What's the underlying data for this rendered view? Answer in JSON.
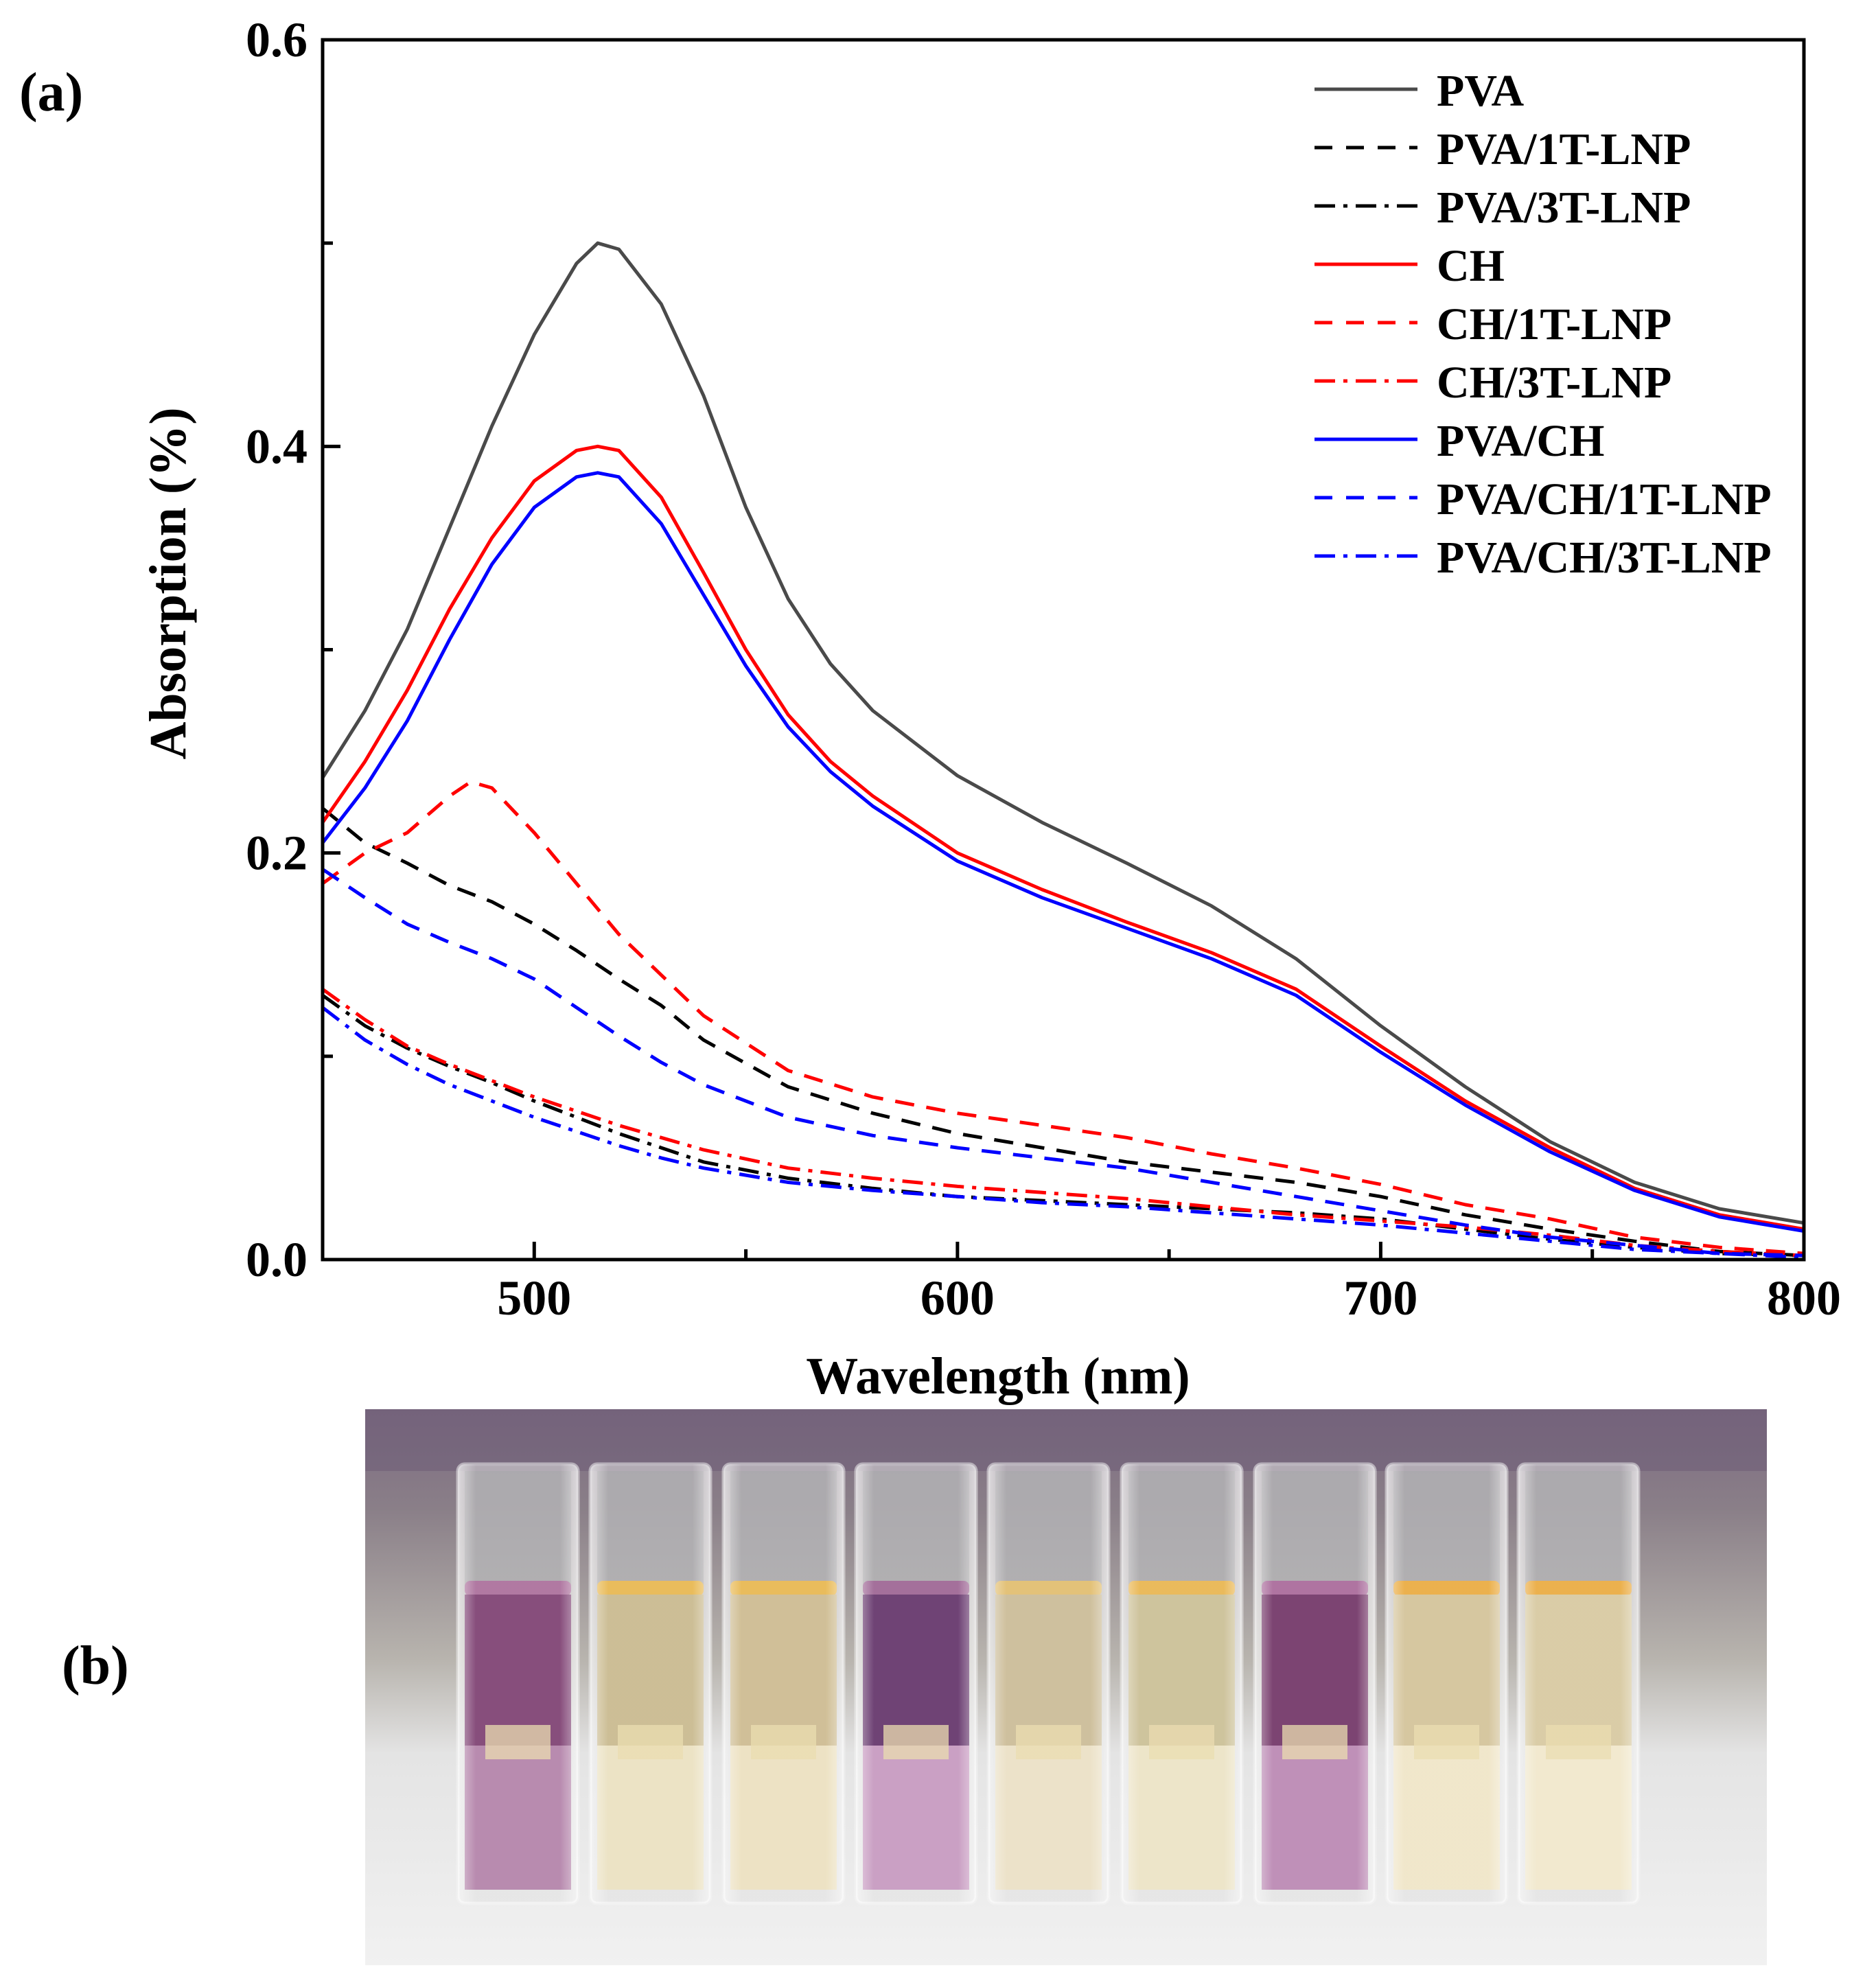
{
  "panels": {
    "a_label": "(a)",
    "b_label": "(b)"
  },
  "chart_data": {
    "type": "line",
    "title": "",
    "xlabel": "Wavelength (nm)",
    "ylabel": "Absorption (%)",
    "xlim": [
      450,
      800
    ],
    "ylim": [
      0,
      0.6
    ],
    "x_ticks": [
      500,
      600,
      700,
      800
    ],
    "x_tick_labels": [
      "500",
      "600",
      "700",
      "800"
    ],
    "x_minor_ticks": [
      450,
      550,
      650,
      750
    ],
    "y_ticks": [
      0.0,
      0.2,
      0.4,
      0.6
    ],
    "y_tick_labels": [
      "0.0",
      "0.2",
      "0.4",
      "0.6"
    ],
    "y_minor_ticks": [
      0.1,
      0.3,
      0.5
    ],
    "grid": false,
    "legend_position": "top-right",
    "series": [
      {
        "name": "PVA",
        "color": "#4a4a4a",
        "dash": "solid",
        "x": [
          450,
          460,
          470,
          480,
          490,
          500,
          510,
          515,
          520,
          530,
          540,
          550,
          560,
          570,
          580,
          600,
          620,
          640,
          660,
          680,
          700,
          720,
          740,
          760,
          780,
          800
        ],
        "y": [
          0.237,
          0.27,
          0.31,
          0.36,
          0.41,
          0.455,
          0.49,
          0.5,
          0.497,
          0.47,
          0.425,
          0.37,
          0.325,
          0.293,
          0.27,
          0.238,
          0.215,
          0.195,
          0.174,
          0.148,
          0.115,
          0.085,
          0.058,
          0.038,
          0.025,
          0.018
        ]
      },
      {
        "name": "PVA/1T-LNP",
        "color": "#000000",
        "dash": "dashed",
        "x": [
          450,
          460,
          470,
          480,
          490,
          500,
          510,
          520,
          530,
          540,
          560,
          580,
          600,
          620,
          640,
          660,
          680,
          700,
          720,
          740,
          760,
          780,
          800
        ],
        "y": [
          0.222,
          0.205,
          0.195,
          0.184,
          0.176,
          0.165,
          0.152,
          0.138,
          0.125,
          0.108,
          0.085,
          0.072,
          0.062,
          0.055,
          0.048,
          0.043,
          0.038,
          0.031,
          0.022,
          0.015,
          0.009,
          0.004,
          0.002
        ]
      },
      {
        "name": "PVA/3T-LNP",
        "color": "#000000",
        "dash": "dashdot",
        "x": [
          450,
          460,
          470,
          480,
          490,
          500,
          510,
          520,
          530,
          540,
          560,
          580,
          600,
          620,
          640,
          660,
          680,
          700,
          720,
          740,
          760,
          780,
          800
        ],
        "y": [
          0.13,
          0.115,
          0.104,
          0.095,
          0.087,
          0.078,
          0.07,
          0.062,
          0.055,
          0.048,
          0.04,
          0.035,
          0.031,
          0.029,
          0.027,
          0.025,
          0.023,
          0.02,
          0.015,
          0.01,
          0.006,
          0.003,
          0.002
        ]
      },
      {
        "name": "CH",
        "color": "#ff0000",
        "dash": "solid",
        "x": [
          450,
          460,
          470,
          480,
          490,
          500,
          510,
          515,
          520,
          530,
          540,
          550,
          560,
          570,
          580,
          600,
          620,
          640,
          660,
          680,
          700,
          720,
          740,
          760,
          780,
          800
        ],
        "y": [
          0.215,
          0.245,
          0.28,
          0.32,
          0.355,
          0.383,
          0.398,
          0.4,
          0.398,
          0.375,
          0.338,
          0.3,
          0.268,
          0.245,
          0.228,
          0.2,
          0.182,
          0.166,
          0.151,
          0.133,
          0.105,
          0.078,
          0.055,
          0.035,
          0.022,
          0.015
        ]
      },
      {
        "name": "CH/1T-LNP",
        "color": "#ff0000",
        "dash": "dashed",
        "x": [
          450,
          460,
          470,
          480,
          485,
          490,
          500,
          510,
          520,
          530,
          540,
          560,
          580,
          600,
          620,
          640,
          660,
          680,
          700,
          720,
          740,
          760,
          780,
          800
        ],
        "y": [
          0.185,
          0.2,
          0.21,
          0.228,
          0.235,
          0.232,
          0.21,
          0.185,
          0.16,
          0.14,
          0.12,
          0.093,
          0.08,
          0.072,
          0.066,
          0.06,
          0.052,
          0.045,
          0.037,
          0.027,
          0.02,
          0.011,
          0.006,
          0.003
        ]
      },
      {
        "name": "CH/3T-LNP",
        "color": "#ff0000",
        "dash": "dashdot",
        "x": [
          450,
          460,
          470,
          480,
          490,
          500,
          510,
          520,
          530,
          540,
          560,
          580,
          600,
          620,
          640,
          660,
          680,
          700,
          720,
          740,
          760,
          780,
          800
        ],
        "y": [
          0.133,
          0.118,
          0.105,
          0.096,
          0.088,
          0.08,
          0.073,
          0.066,
          0.06,
          0.054,
          0.045,
          0.04,
          0.036,
          0.033,
          0.03,
          0.026,
          0.022,
          0.019,
          0.016,
          0.012,
          0.007,
          0.004,
          0.002
        ]
      },
      {
        "name": "PVA/CH",
        "color": "#0000ff",
        "dash": "solid",
        "x": [
          450,
          460,
          470,
          480,
          490,
          500,
          510,
          515,
          520,
          530,
          540,
          550,
          560,
          570,
          580,
          600,
          620,
          640,
          660,
          680,
          700,
          720,
          740,
          760,
          780,
          800
        ],
        "y": [
          0.205,
          0.232,
          0.265,
          0.305,
          0.342,
          0.37,
          0.385,
          0.387,
          0.385,
          0.362,
          0.327,
          0.292,
          0.262,
          0.24,
          0.223,
          0.196,
          0.178,
          0.163,
          0.148,
          0.13,
          0.102,
          0.076,
          0.053,
          0.034,
          0.021,
          0.014
        ]
      },
      {
        "name": "PVA/CH/1T-LNP",
        "color": "#0000ff",
        "dash": "dashed",
        "x": [
          450,
          460,
          470,
          480,
          490,
          500,
          510,
          520,
          530,
          540,
          560,
          580,
          600,
          620,
          640,
          660,
          680,
          700,
          720,
          740,
          760,
          780,
          800
        ],
        "y": [
          0.192,
          0.178,
          0.165,
          0.156,
          0.148,
          0.138,
          0.124,
          0.11,
          0.097,
          0.086,
          0.07,
          0.061,
          0.055,
          0.05,
          0.045,
          0.038,
          0.031,
          0.024,
          0.017,
          0.011,
          0.007,
          0.003,
          0.002
        ]
      },
      {
        "name": "PVA/CH/3T-LNP",
        "color": "#0000ff",
        "dash": "dashdot",
        "x": [
          450,
          460,
          470,
          480,
          490,
          500,
          510,
          520,
          530,
          540,
          560,
          580,
          600,
          620,
          640,
          660,
          680,
          700,
          720,
          740,
          760,
          780,
          800
        ],
        "y": [
          0.124,
          0.108,
          0.096,
          0.086,
          0.078,
          0.07,
          0.063,
          0.056,
          0.05,
          0.045,
          0.038,
          0.034,
          0.031,
          0.028,
          0.026,
          0.023,
          0.02,
          0.017,
          0.013,
          0.009,
          0.005,
          0.003,
          0.001
        ]
      }
    ]
  },
  "photo": {
    "description_name": "cuvette-photo",
    "cuvettes": [
      {
        "liquid": "#b07ea6",
        "top": "#7a3a6e",
        "meniscus": "#a86a98"
      },
      {
        "liquid": "#eae0bf",
        "top": "#c7b78a",
        "meniscus": "#e7b54a"
      },
      {
        "liquid": "#ebdfbd",
        "top": "#cbb88c",
        "meniscus": "#e7b54a"
      },
      {
        "liquid": "#c495bd",
        "top": "#5f2e66",
        "meniscus": "#9a6090"
      },
      {
        "liquid": "#eadfc3",
        "top": "#c9b993",
        "meniscus": "#e0bb6a"
      },
      {
        "liquid": "#ebe2c3",
        "top": "#c9bd92",
        "meniscus": "#e8b34a"
      },
      {
        "liquid": "#b884b0",
        "top": "#6e2f62",
        "meniscus": "#a66597"
      },
      {
        "liquid": "#efe4c5",
        "top": "#d2c196",
        "meniscus": "#e9a83a"
      },
      {
        "liquid": "#f0e7ca",
        "top": "#d6c79d",
        "meniscus": "#e9a83a"
      }
    ]
  }
}
